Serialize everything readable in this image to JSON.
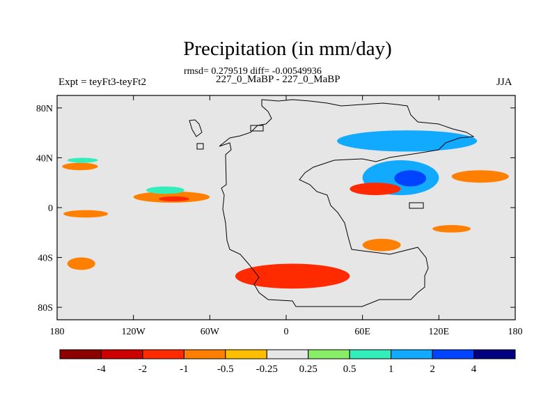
{
  "title": "Precipitation (in mm/day)",
  "stats": "rmsd= 0.279519 diff= -0.00549936",
  "subtitle": "227_0_MaBP - 227_0_MaBP",
  "left_label": "Expt = teyFt3-teyFt2",
  "right_label": "JJA",
  "chart_data": {
    "type": "heatmap",
    "title": "Precipitation (in mm/day)",
    "variable": "precipitation difference",
    "units": "mm/day",
    "season": "JJA",
    "xlim": [
      -180,
      180
    ],
    "ylim": [
      -90,
      90
    ],
    "x_ticks": [
      {
        "value": -180,
        "label": "180"
      },
      {
        "value": -120,
        "label": "120W"
      },
      {
        "value": -60,
        "label": "60W"
      },
      {
        "value": 0,
        "label": "0"
      },
      {
        "value": 60,
        "label": "60E"
      },
      {
        "value": 120,
        "label": "120E"
      },
      {
        "value": 180,
        "label": "180"
      }
    ],
    "y_ticks": [
      {
        "value": 80,
        "label": "80N"
      },
      {
        "value": 40,
        "label": "40N"
      },
      {
        "value": 0,
        "label": "0"
      },
      {
        "value": -40,
        "label": "40S"
      },
      {
        "value": -80,
        "label": "80S"
      }
    ],
    "colorbar": {
      "levels": [
        -4,
        -2,
        -1,
        -0.5,
        -0.25,
        0.25,
        0.5,
        1,
        2,
        4
      ],
      "labels": [
        "-4",
        "-2",
        "-1",
        "-0.5",
        "-0.25",
        "0.25",
        "0.5",
        "1",
        "2",
        "4"
      ],
      "colors": [
        "#8c0000",
        "#cc0000",
        "#ff2a00",
        "#ff7f00",
        "#ffbf00",
        "#e6e6e6",
        "#88ee66",
        "#33eebb",
        "#11aaff",
        "#0044ff",
        "#000080"
      ]
    },
    "background_color": "#e6e6e6",
    "features": [
      {
        "name": "north-pacific-band",
        "lon": [
          -176,
          -148
        ],
        "lat": [
          30,
          36
        ],
        "category": -0.5
      },
      {
        "name": "north-pacific-band-positive",
        "lon": [
          -172,
          -148
        ],
        "lat": [
          36,
          40
        ],
        "category": 0.5
      },
      {
        "name": "tropical-pacific-band",
        "lon": [
          -120,
          -60
        ],
        "lat": [
          4,
          13
        ],
        "category": -0.5
      },
      {
        "name": "tropical-pacific-core",
        "lon": [
          -100,
          -76
        ],
        "lat": [
          5,
          9
        ],
        "category": -1
      },
      {
        "name": "tropical-pacific-positive",
        "lon": [
          -110,
          -80
        ],
        "lat": [
          11,
          17
        ],
        "category": 0.5
      },
      {
        "name": "south-pacific-band",
        "lon": [
          -175,
          -140
        ],
        "lat": [
          -8,
          -2
        ],
        "category": -0.5
      },
      {
        "name": "southeast-pacific",
        "lon": [
          -172,
          -150
        ],
        "lat": [
          -50,
          -40
        ],
        "category": -0.5
      },
      {
        "name": "southern-ocean-band",
        "lon": [
          -40,
          50
        ],
        "lat": [
          -65,
          -45
        ],
        "category": -1
      },
      {
        "name": "west-pacific-warm-pool",
        "lon": [
          60,
          120
        ],
        "lat": [
          10,
          38
        ],
        "category": 1
      },
      {
        "name": "east-asia-core",
        "lon": [
          85,
          110
        ],
        "lat": [
          17,
          30
        ],
        "category": 2
      },
      {
        "name": "siberia-band",
        "lon": [
          40,
          150
        ],
        "lat": [
          45,
          62
        ],
        "category": 1
      },
      {
        "name": "southeast-asia-deficit",
        "lon": [
          50,
          90
        ],
        "lat": [
          10,
          20
        ],
        "category": -1
      },
      {
        "name": "north-pacific-deficit",
        "lon": [
          130,
          175
        ],
        "lat": [
          20,
          30
        ],
        "category": -0.5
      },
      {
        "name": "south-indian-deficit",
        "lon": [
          115,
          145
        ],
        "lat": [
          -20,
          -14
        ],
        "category": -0.5
      },
      {
        "name": "south-indian-band",
        "lon": [
          60,
          90
        ],
        "lat": [
          -35,
          -25
        ],
        "category": -0.5
      }
    ]
  }
}
